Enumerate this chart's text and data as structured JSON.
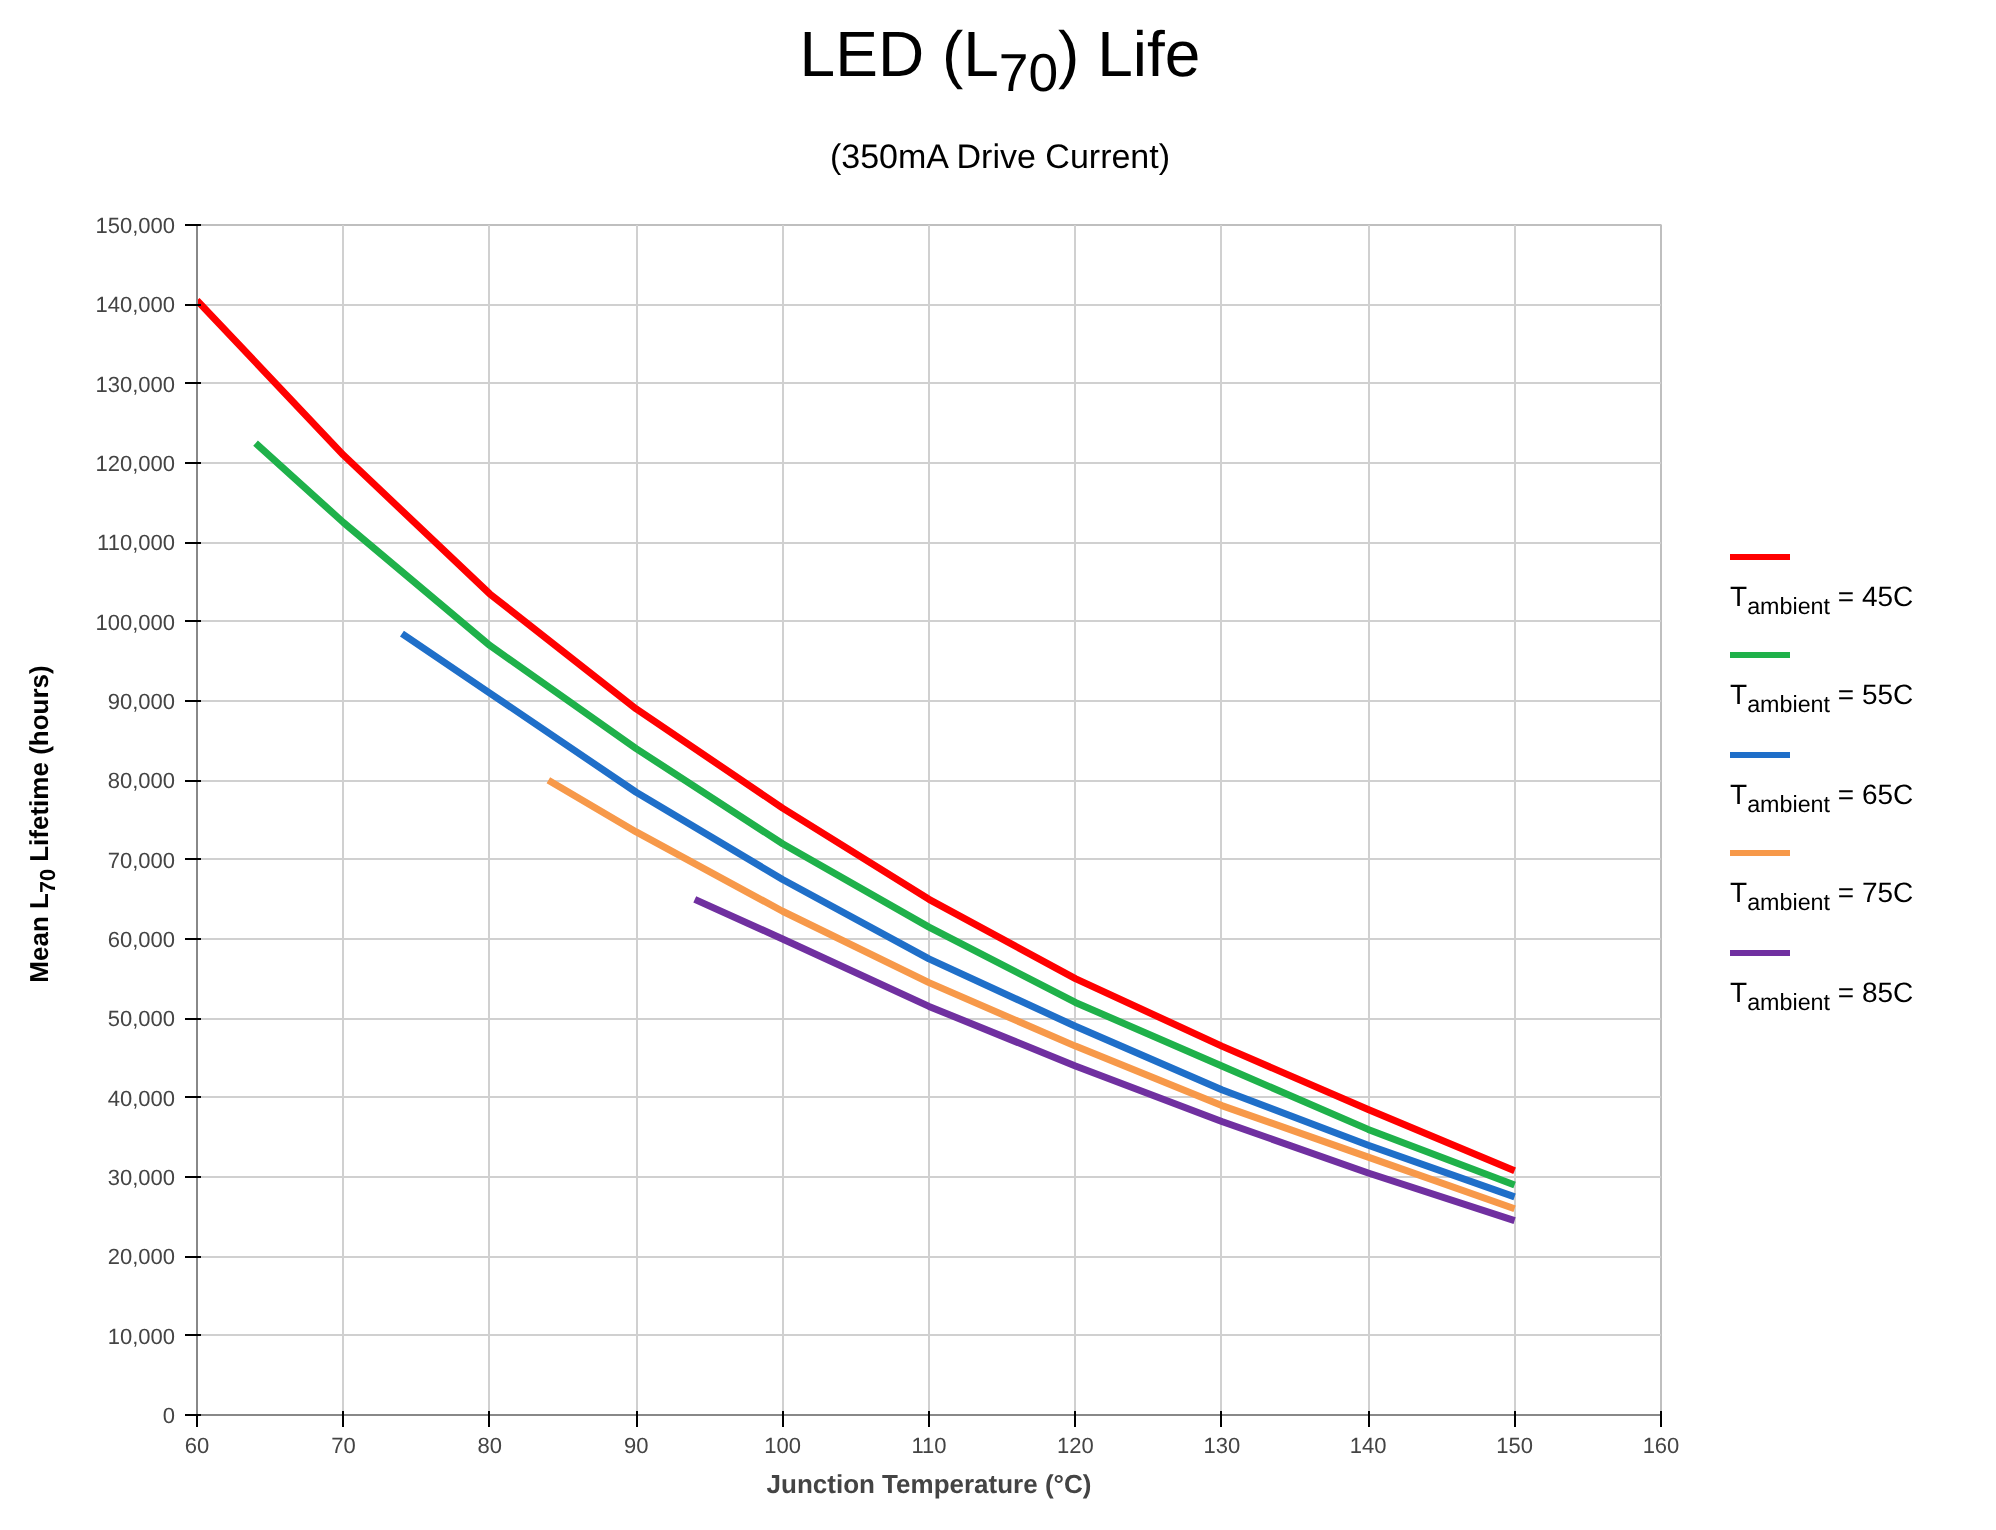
{
  "chart_data": {
    "type": "line",
    "title": "LED (L$_{70}$) Life",
    "subtitle": "(350mA Drive Current)",
    "xlabel": "Junction Temperature (°C)",
    "ylabel": "Mean L$_{70}$ Lifetime (hours)",
    "xlim": [
      60,
      160
    ],
    "xticks": [
      60,
      70,
      80,
      90,
      100,
      110,
      120,
      130,
      140,
      150,
      160
    ],
    "ylim": [
      0,
      150000
    ],
    "yticks": [
      {
        "value": 0,
        "label": "0"
      },
      {
        "value": 10000,
        "label": "10,000"
      },
      {
        "value": 20000,
        "label": "20,000"
      },
      {
        "value": 30000,
        "label": "30,000"
      },
      {
        "value": 40000,
        "label": "40,000"
      },
      {
        "value": 50000,
        "label": "50,000"
      },
      {
        "value": 60000,
        "label": "60,000"
      },
      {
        "value": 70000,
        "label": "70,000"
      },
      {
        "value": 80000,
        "label": "80,000"
      },
      {
        "value": 90000,
        "label": "90,000"
      },
      {
        "value": 100000,
        "label": "100,000"
      },
      {
        "value": 110000,
        "label": "110,000"
      },
      {
        "value": 120000,
        "label": "120,000"
      },
      {
        "value": 130000,
        "label": "130,000"
      },
      {
        "value": 140000,
        "label": "140,000"
      },
      {
        "value": 150000,
        "label": "150,000"
      }
    ],
    "grid": true,
    "legend": "right",
    "marker": "none",
    "line_style": "solid",
    "series": [
      {
        "name": "T$_{ambient}$ = 45C",
        "color": "#ff0000",
        "x": [
          60,
          70,
          80,
          90,
          100,
          110,
          120,
          130,
          140,
          150
        ],
        "values": [
          140500,
          121000,
          103500,
          89000,
          76500,
          65000,
          55000,
          46500,
          38500,
          30800
        ]
      },
      {
        "name": "T$_{ambient}$ = 55C",
        "color": "#1fb14a",
        "x": [
          64,
          70,
          80,
          90,
          100,
          110,
          120,
          130,
          140,
          150
        ],
        "values": [
          122500,
          112500,
          97000,
          84000,
          72000,
          61500,
          52000,
          44000,
          36000,
          29000
        ]
      },
      {
        "name": "T$_{ambient}$ = 65C",
        "color": "#1f6fc9",
        "x": [
          74,
          80,
          90,
          100,
          110,
          120,
          130,
          140,
          150
        ],
        "values": [
          98500,
          91000,
          78500,
          67500,
          57500,
          49000,
          41000,
          34000,
          27500
        ]
      },
      {
        "name": "T$_{ambient}$ = 75C",
        "color": "#f7994a",
        "x": [
          84,
          90,
          100,
          110,
          120,
          130,
          140,
          150
        ],
        "values": [
          80000,
          73500,
          63500,
          54500,
          46500,
          39000,
          32500,
          26000
        ]
      },
      {
        "name": "T$_{ambient}$ = 85C",
        "color": "#7030a0",
        "x": [
          94,
          100,
          110,
          120,
          130,
          140,
          150
        ],
        "values": [
          65000,
          60000,
          51500,
          44000,
          37000,
          30500,
          24500
        ]
      }
    ]
  }
}
